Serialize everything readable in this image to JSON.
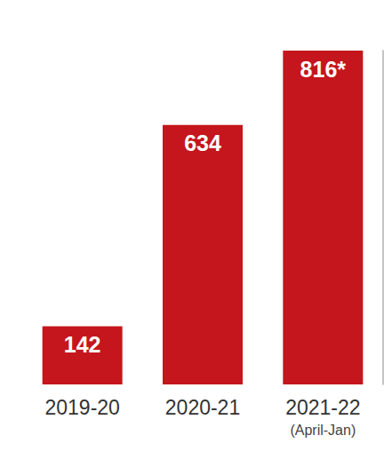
{
  "chart_data": {
    "type": "bar",
    "categories": [
      "2019-20",
      "2020-21",
      "2021-22\n(April-Jan)"
    ],
    "values": [
      142,
      634,
      816
    ],
    "value_labels": [
      "142",
      "634",
      "816*"
    ],
    "color": "#c4161c",
    "ylim": [
      0,
      816
    ],
    "data_labels": true,
    "tick_labels": "x",
    "grid": false
  }
}
